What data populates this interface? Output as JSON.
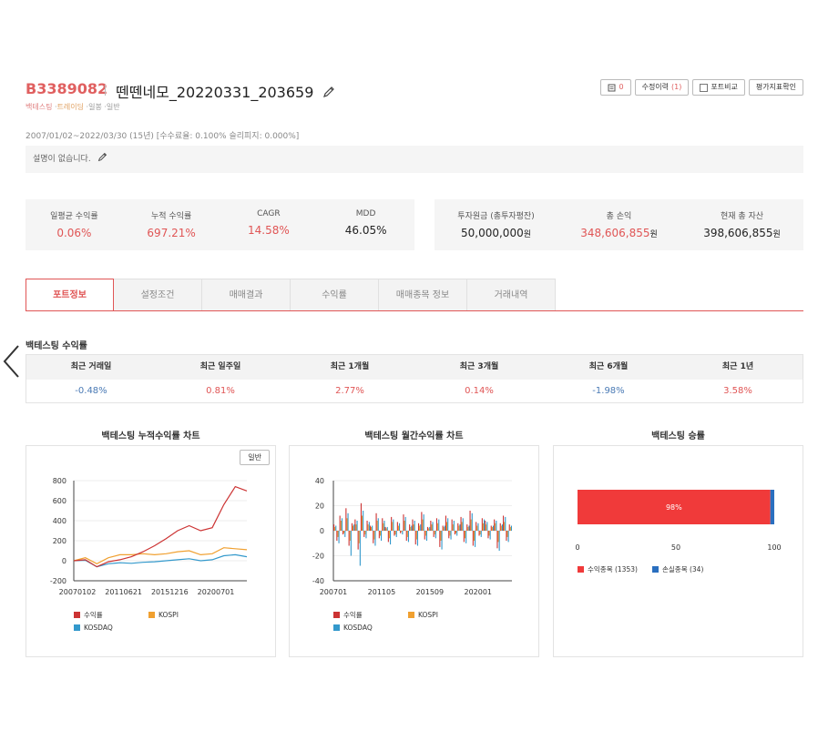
{
  "header": {
    "code": "B3389082",
    "title": "뗀뗀네모_20220331_203659",
    "tags": [
      "백테스팅",
      "트레이딩",
      "일봉",
      "일반"
    ],
    "buttons": {
      "memo_count": "0",
      "history_label": "수정이력",
      "history_count": "(1)",
      "portfolio_compare": "포트비교",
      "evaluation": "평가지표확인"
    },
    "period": "2007/01/02~2022/03/30 (15년) [수수료율: 0.100% 슬리피지: 0.000%]",
    "description": "설명이 없습니다."
  },
  "stats_left": [
    {
      "label": "일평균 수익률",
      "value": "0.06%",
      "color": "#e05555"
    },
    {
      "label": "누적 수익률",
      "value": "697.21%",
      "color": "#e05555"
    },
    {
      "label": "CAGR",
      "value": "14.58%",
      "color": "#e05555"
    },
    {
      "label": "MDD",
      "value": "46.05%",
      "color": "#222222"
    }
  ],
  "stats_right": [
    {
      "label": "투자원금 (총투자평잔)",
      "value": "50,000,000",
      "unit": "원",
      "color": "#222222"
    },
    {
      "label": "총 손익",
      "value": "348,606,855",
      "unit": "원",
      "color": "#e05555"
    },
    {
      "label": "현재 총 자산",
      "value": "398,606,855",
      "unit": "원",
      "color": "#222222"
    }
  ],
  "tabs": [
    "포트정보",
    "설정조건",
    "매매결과",
    "수익률",
    "매매종목 정보",
    "거래내역"
  ],
  "returns_section": {
    "title": "백테스팅 수익률",
    "headers": [
      "최근 거래일",
      "최근 일주일",
      "최근 1개월",
      "최근 3개월",
      "최근 6개월",
      "최근 1년"
    ],
    "values": [
      "-0.48%",
      "0.81%",
      "2.77%",
      "0.14%",
      "-1.98%",
      "3.58%"
    ],
    "signs": [
      "neg",
      "pos",
      "pos",
      "pos",
      "neg",
      "pos"
    ]
  },
  "charts": {
    "cumulative_title": "백테스팅 누적수익률 차트",
    "monthly_title": "백테스팅 월간수익률 차트",
    "winrate_title": "백테스팅 승률",
    "general_button": "일반"
  },
  "chart_data": [
    {
      "type": "line",
      "x": [
        "20070102",
        "20080101",
        "20090101",
        "20100101",
        "20110621",
        "20120101",
        "20130101",
        "20140101",
        "20151216",
        "20170101",
        "20180101",
        "20190101",
        "20200701",
        "20210101",
        "20210601",
        "20220330"
      ],
      "xticks": [
        "20070102",
        "20110621",
        "20151216",
        "20200701"
      ],
      "ylim": [
        -200,
        800
      ],
      "yticks": [
        -200,
        0,
        200,
        400,
        600,
        800
      ],
      "series": [
        {
          "name": "수익률",
          "color": "#cc3333",
          "values": [
            0,
            10,
            -60,
            -10,
            10,
            40,
            90,
            150,
            220,
            300,
            350,
            300,
            330,
            560,
            740,
            697
          ]
        },
        {
          "name": "KOSPI",
          "color": "#f0a030",
          "values": [
            0,
            30,
            -30,
            30,
            60,
            60,
            70,
            60,
            70,
            90,
            100,
            60,
            70,
            130,
            120,
            110
          ]
        },
        {
          "name": "KOSDAQ",
          "color": "#3399cc",
          "values": [
            0,
            5,
            -60,
            -30,
            -20,
            -25,
            -15,
            -10,
            0,
            10,
            20,
            0,
            10,
            50,
            60,
            40
          ]
        }
      ],
      "grid": true,
      "legend": "bottom"
    },
    {
      "type": "bar",
      "xticks": [
        "200701",
        "201105",
        "201509",
        "202001"
      ],
      "ylim": [
        -40,
        40
      ],
      "yticks": [
        -40,
        -20,
        0,
        20,
        40
      ],
      "series": [
        {
          "name": "수익률",
          "color": "#cc3333",
          "values": [
            5,
            -8,
            12,
            -3,
            18,
            -12,
            6,
            9,
            -15,
            22,
            -5,
            8,
            4,
            -10,
            14,
            -6,
            10,
            3,
            -9,
            11,
            -4,
            7,
            -2,
            13,
            -8,
            5,
            9,
            -11,
            6,
            15,
            -7,
            3,
            8,
            -5,
            10,
            -13,
            4,
            12,
            -6,
            9,
            -3,
            6,
            11,
            -9,
            5,
            16,
            -12,
            7,
            -4,
            10,
            8,
            -6,
            4,
            9,
            -14,
            6,
            12,
            -8,
            5
          ]
        },
        {
          "name": "KOSPI",
          "color": "#f0a030",
          "values": [
            3,
            -5,
            8,
            -2,
            10,
            -8,
            4,
            5,
            -10,
            12,
            -3,
            5,
            3,
            -7,
            8,
            -4,
            6,
            2,
            -6,
            7,
            -3,
            4,
            -1,
            8,
            -5,
            3,
            5,
            -7,
            4,
            9,
            -4,
            2,
            5,
            -3,
            6,
            -8,
            3,
            7,
            -4,
            5,
            -2,
            4,
            7,
            -6,
            3,
            9,
            -8,
            4,
            -3,
            6,
            5,
            -4,
            3,
            6,
            -9,
            4,
            7,
            -5,
            3
          ]
        },
        {
          "name": "KOSDAQ",
          "color": "#3399cc",
          "values": [
            4,
            -10,
            10,
            -5,
            14,
            -20,
            5,
            8,
            -28,
            16,
            -6,
            7,
            4,
            -12,
            10,
            -8,
            8,
            3,
            -11,
            9,
            -5,
            6,
            -3,
            11,
            -9,
            4,
            8,
            -12,
            5,
            13,
            -8,
            3,
            7,
            -6,
            9,
            -15,
            4,
            10,
            -7,
            8,
            -4,
            5,
            10,
            -10,
            4,
            14,
            -13,
            6,
            -5,
            9,
            7,
            -7,
            4,
            8,
            -16,
            5,
            11,
            -9,
            4
          ]
        }
      ],
      "grid": true,
      "legend": "bottom"
    },
    {
      "type": "bar",
      "orientation": "horizontal-stacked",
      "xlim": [
        0,
        100
      ],
      "xticks": [
        0,
        50,
        100
      ],
      "data_label": "98%",
      "series": [
        {
          "name": "수익종목 (1353)",
          "color": "#f03a3a",
          "values": [
            98
          ]
        },
        {
          "name": "손실종목 (34)",
          "color": "#2a6fbf",
          "values": [
            2
          ]
        }
      ],
      "legend": "bottom"
    }
  ]
}
